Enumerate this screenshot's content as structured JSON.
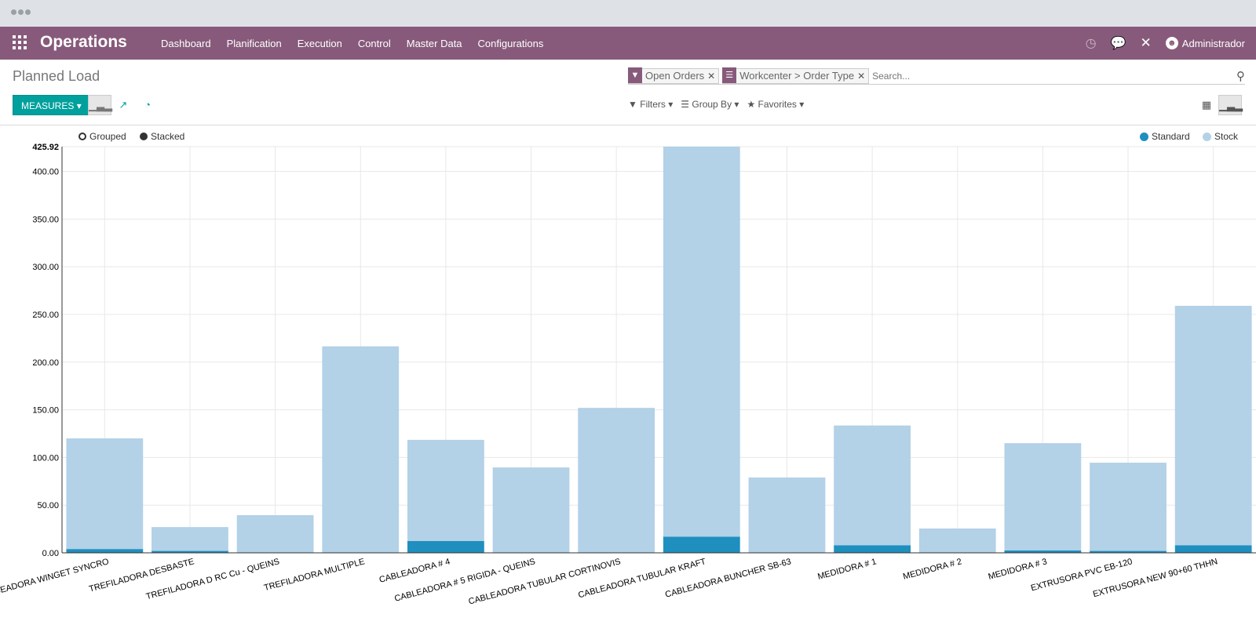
{
  "navbar": {
    "brand": "Operations",
    "menu": [
      "Dashboard",
      "Planification",
      "Execution",
      "Control",
      "Master Data",
      "Configurations"
    ],
    "user": "Administrador"
  },
  "control": {
    "title": "Planned Load",
    "measures_label": "MEASURES",
    "facets": [
      {
        "icon": "filter-icon",
        "label": "Open Orders"
      },
      {
        "icon": "group-by-icon",
        "label": "Workcenter > Order Type"
      }
    ],
    "search_placeholder": "Search...",
    "filters_label": "Filters",
    "groupby_label": "Group By",
    "favorites_label": "Favorites"
  },
  "chart_controls": {
    "grouped_label": "Grouped",
    "stacked_label": "Stacked",
    "mode": "stacked"
  },
  "colors": {
    "navbar": "#875a7b",
    "accent": "#00a09d",
    "standard": "#1f8fbf",
    "stock": "#b3d1e7"
  },
  "chart_data": {
    "type": "bar",
    "stacked": true,
    "categories": [
      "TROCEADORA WINGET SYNCRO",
      "TREFILADORA DESBASTE",
      "TREFILADORA D RC Cu - QUEINS",
      "TREFILADORA MULTIPLE",
      "CABLEADORA # 4",
      "CABLEADORA # 5 RIGIDA - QUEINS",
      "CABLEADORA TUBULAR CORTINOVIS",
      "CABLEADORA TUBULAR KRAFT",
      "CABLEADORA BUNCHER SB-63",
      "MEDIDORA # 1",
      "MEDIDORA # 2",
      "MEDIDORA # 3",
      "EXTRUSORA PVC EB-120",
      "EXTRUSORA NEW 90+60 THHN"
    ],
    "series": [
      {
        "name": "Standard",
        "values": [
          4,
          2,
          0,
          0,
          12.5,
          0,
          0,
          17,
          0,
          8,
          0,
          2.5,
          2,
          8
        ]
      },
      {
        "name": "Stock",
        "values": [
          116,
          25,
          39.5,
          216.5,
          106,
          89.5,
          152,
          408.92,
          79,
          125.5,
          25.5,
          112.5,
          92.5,
          251
        ]
      }
    ],
    "yticks": [
      "0.00",
      "50.00",
      "100.00",
      "150.00",
      "200.00",
      "250.00",
      "300.00",
      "350.00",
      "400.00",
      "425.92"
    ],
    "ylim": [
      0,
      425.92
    ],
    "grid": true,
    "legend_position": "top-right"
  }
}
